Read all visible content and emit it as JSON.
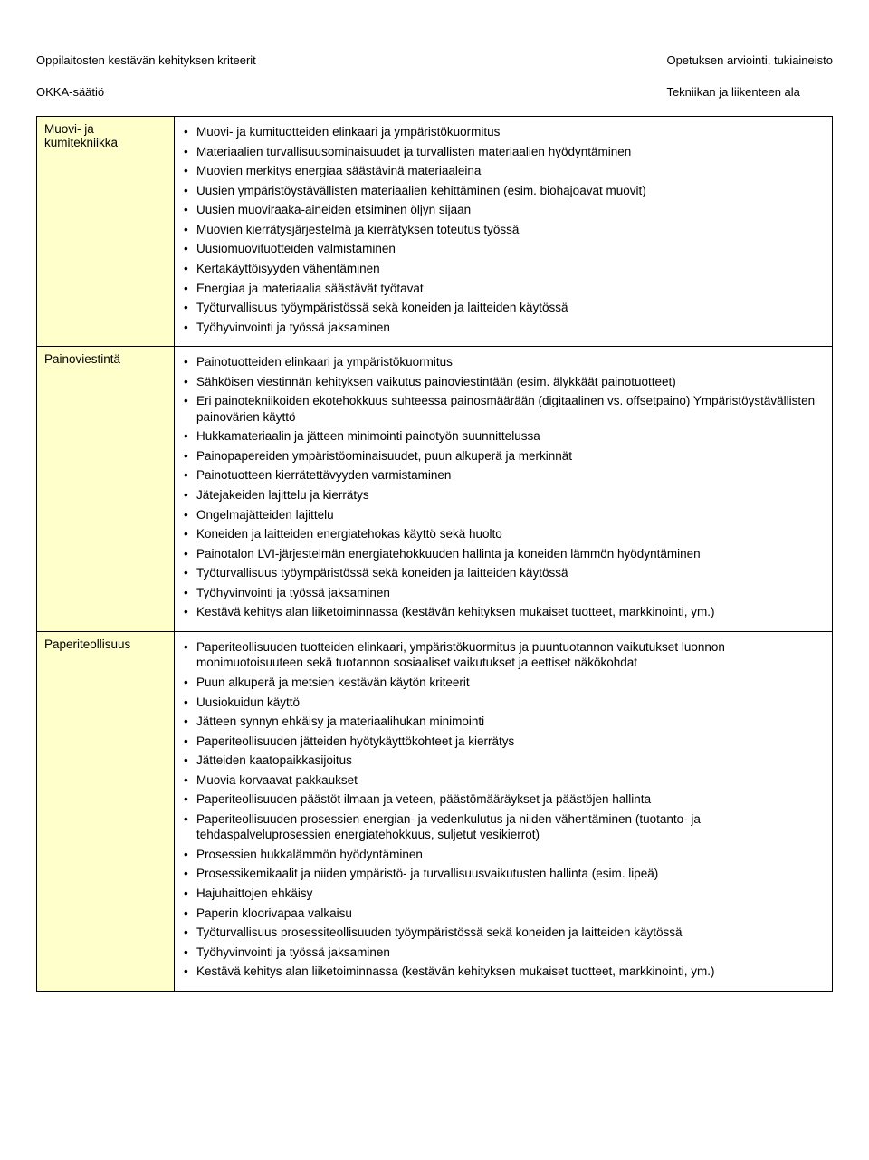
{
  "header": {
    "left_line1": "Oppilaitosten kestävän kehityksen kriteerit",
    "left_line2": "OKKA-säätiö",
    "right_line1": "Opetuksen arviointi, tukiaineisto",
    "right_line2": "Tekniikan ja liikenteen ala"
  },
  "rows": [
    {
      "label": "Muovi- ja kumitekniikka",
      "items": [
        "Muovi- ja kumituotteiden elinkaari ja ympäristökuormitus",
        "Materiaalien turvallisuusominaisuudet ja turvallisten materiaalien hyödyntäminen",
        "Muovien merkitys energiaa säästävinä materiaaleina",
        "Uusien ympäristöystävällisten materiaalien kehittäminen (esim. biohajoavat muovit)",
        "Uusien muoviraaka-aineiden etsiminen öljyn sijaan",
        "Muovien kierrätysjärjestelmä ja kierrätyksen toteutus työssä",
        "Uusiomuovituotteiden valmistaminen",
        "Kertakäyttöisyyden vähentäminen",
        "Energiaa ja materiaalia säästävät työtavat",
        "Työturvallisuus työympäristössä sekä koneiden ja laitteiden käytössä",
        "Työhyvinvointi ja työssä jaksaminen"
      ]
    },
    {
      "label": "Painoviestintä",
      "items": [
        "Painotuotteiden elinkaari ja ympäristökuormitus",
        "Sähköisen viestinnän kehityksen vaikutus painoviestintään (esim. älykkäät painotuotteet)",
        "Eri painotekniikoiden ekotehokkuus suhteessa painosmäärään (digitaalinen vs. offsetpaino) Ympäristöystävällisten painovärien käyttö",
        "Hukkamateriaalin ja jätteen minimointi painotyön suunnittelussa",
        "Painopapereiden ympäristöominaisuudet, puun alkuperä ja merkinnät",
        "Painotuotteen kierrätettävyyden varmistaminen",
        "Jätejakeiden lajittelu ja kierrätys",
        "Ongelmajätteiden lajittelu",
        "Koneiden ja laitteiden energiatehokas käyttö sekä huolto",
        "Painotalon LVI-järjestelmän energiatehokkuuden hallinta ja koneiden lämmön hyödyntäminen",
        "Työturvallisuus työympäristössä sekä koneiden ja laitteiden käytössä",
        "Työhyvinvointi ja työssä jaksaminen",
        "Kestävä kehitys alan liiketoiminnassa (kestävän kehityksen mukaiset tuotteet, markkinointi, ym.)"
      ]
    },
    {
      "label": "Paperiteollisuus",
      "items": [
        "Paperiteollisuuden tuotteiden elinkaari, ympäristökuormitus ja puuntuotannon vaikutukset luonnon monimuotoisuuteen sekä tuotannon sosiaaliset vaikutukset ja eettiset näkökohdat",
        "Puun alkuperä ja metsien kestävän käytön kriteerit",
        "Uusiokuidun käyttö",
        "Jätteen synnyn ehkäisy ja materiaalihukan minimointi",
        "Paperiteollisuuden jätteiden hyötykäyttökohteet ja kierrätys",
        "Jätteiden kaatopaikkasijoitus",
        "Muovia korvaavat pakkaukset",
        "Paperiteollisuuden päästöt ilmaan ja veteen, päästömääräykset ja päästöjen hallinta",
        "Paperiteollisuuden prosessien energian- ja vedenkulutus ja niiden vähentäminen (tuotanto- ja tehdaspalveluprosessien energiatehokkuus, suljetut vesikierrot)",
        "Prosessien hukkalämmön hyödyntäminen",
        "Prosessikemikaalit ja niiden ympäristö- ja turvallisuusvaikutusten hallinta (esim. lipeä)",
        "Hajuhaittojen ehkäisy",
        "Paperin kloorivapaa valkaisu",
        "Työturvallisuus prosessiteollisuuden työympäristössä sekä koneiden ja laitteiden käytössä",
        "Työhyvinvointi ja työssä jaksaminen",
        "Kestävä kehitys alan liiketoiminnassa (kestävän kehityksen mukaiset tuotteet, markkinointi, ym.)"
      ]
    }
  ]
}
